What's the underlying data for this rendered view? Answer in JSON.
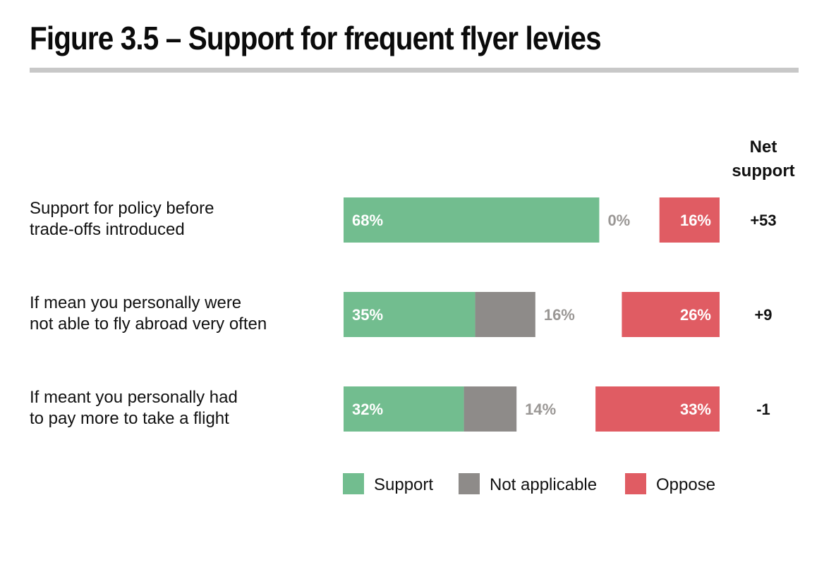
{
  "chart_data": {
    "type": "bar",
    "title": "Figure 3.5 – Support for frequent flyer levies",
    "categories": [
      [
        "Support for policy before",
        "trade-offs introduced"
      ],
      [
        "If mean you personally were",
        "not able to fly abroad very often"
      ],
      [
        "If meant you personally had",
        "to pay more to take a flight"
      ]
    ],
    "series": [
      {
        "name": "Support",
        "values": [
          68,
          35,
          32
        ],
        "labels": [
          "68%",
          "35%",
          "32%"
        ]
      },
      {
        "name": "Not applicable",
        "values": [
          0,
          16,
          14
        ],
        "labels": [
          "0%",
          "16%",
          "14%"
        ]
      },
      {
        "name": "Oppose",
        "values": [
          16,
          26,
          33
        ],
        "labels": [
          "16%",
          "26%",
          "33%"
        ]
      }
    ],
    "net_support": {
      "header": [
        "Net",
        "support"
      ],
      "values": [
        "+53",
        "+9",
        "-1"
      ]
    },
    "legend": [
      "Support",
      "Not applicable",
      "Oppose"
    ],
    "legend_position": "bottom",
    "xlim": [
      0,
      100
    ],
    "colors": {
      "support": "#72bd8f",
      "not_applicable": "#8e8b89",
      "oppose": "#e05c63",
      "support_label": "#ffffff",
      "na_label": "#9a9795",
      "oppose_label": "#ffffff"
    }
  }
}
